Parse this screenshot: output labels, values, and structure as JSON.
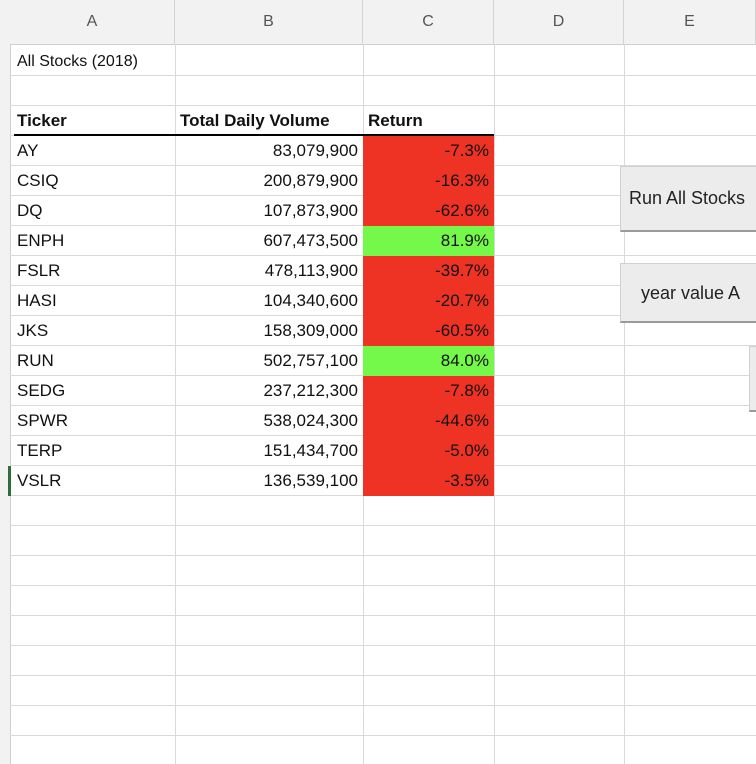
{
  "spreadsheet": {
    "column_headers": [
      "A",
      "B",
      "C",
      "D",
      "E"
    ],
    "title_cell": "All Stocks (2018)",
    "table": {
      "headers": [
        "Ticker",
        "Total Daily Volume",
        "Return"
      ],
      "rows": [
        {
          "ticker": "AY",
          "volume": "83,079,900",
          "return": "-7.3%",
          "status": "negative"
        },
        {
          "ticker": "CSIQ",
          "volume": "200,879,900",
          "return": "-16.3%",
          "status": "negative"
        },
        {
          "ticker": "DQ",
          "volume": "107,873,900",
          "return": "-62.6%",
          "status": "negative"
        },
        {
          "ticker": "ENPH",
          "volume": "607,473,500",
          "return": "81.9%",
          "status": "positive"
        },
        {
          "ticker": "FSLR",
          "volume": "478,113,900",
          "return": "-39.7%",
          "status": "negative"
        },
        {
          "ticker": "HASI",
          "volume": "104,340,600",
          "return": "-20.7%",
          "status": "negative"
        },
        {
          "ticker": "JKS",
          "volume": "158,309,000",
          "return": "-60.5%",
          "status": "negative"
        },
        {
          "ticker": "RUN",
          "volume": "502,757,100",
          "return": "84.0%",
          "status": "positive"
        },
        {
          "ticker": "SEDG",
          "volume": "237,212,300",
          "return": "-7.8%",
          "status": "negative"
        },
        {
          "ticker": "SPWR",
          "volume": "538,024,300",
          "return": "-44.6%",
          "status": "negative"
        },
        {
          "ticker": "TERP",
          "volume": "151,434,700",
          "return": "-5.0%",
          "status": "negative"
        },
        {
          "ticker": "VSLR",
          "volume": "136,539,100",
          "return": "-3.5%",
          "status": "negative"
        }
      ]
    }
  },
  "buttons": {
    "run_all_stocks": "Run All Stocks",
    "year_value": "year value A"
  },
  "colors": {
    "negative": "#ee3324",
    "positive": "#74f84a",
    "gridline": "#d9d9d9",
    "header_bg": "#f2f2f2"
  }
}
